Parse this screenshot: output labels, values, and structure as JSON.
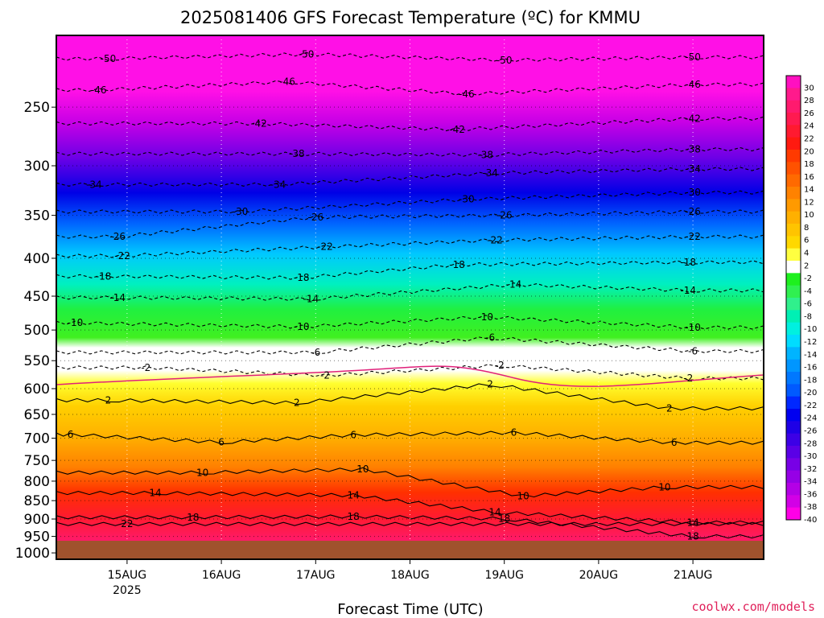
{
  "title": "2025081406 GFS Forecast Temperature (ºC) for KMMU",
  "credit": "coolwx.com/models",
  "chart_data": {
    "type": "heatmap",
    "title": "2025081406 GFS Forecast Temperature (ºC) for KMMU",
    "xlabel": "Forecast Time (UTC)",
    "ylabel": "",
    "x_ticks": [
      "15AUG",
      "16AUG",
      "17AUG",
      "18AUG",
      "19AUG",
      "20AUG",
      "21AUG"
    ],
    "x_tick_year": "2025",
    "x_range_days": [
      -0.75,
      6.75
    ],
    "y_ticks": [
      250,
      300,
      350,
      400,
      450,
      500,
      550,
      600,
      650,
      700,
      750,
      800,
      850,
      900,
      950,
      1000
    ],
    "y_scale": "log-pressure (hPa), inverted",
    "y_range_hpa": [
      200,
      1020
    ],
    "grid": true,
    "ground_level_hpa": 1006,
    "colorbar": {
      "labels": [
        "30",
        "28",
        "26",
        "24",
        "22",
        "20",
        "18",
        "16",
        "14",
        "12",
        "10",
        "8",
        "6",
        "4",
        "2",
        "-2",
        "-4",
        "-6",
        "-8",
        "-10",
        "-12",
        "-14",
        "-16",
        "-18",
        "-20",
        "-22",
        "-24",
        "-26",
        "-28",
        "-30",
        "-32",
        "-34",
        "-36",
        "-38",
        "-40"
      ],
      "colors": [
        "#ff10c0",
        "#ff1a8c",
        "#ff1a6e",
        "#ff1a50",
        "#ff1a30",
        "#ff1a10",
        "#ff3a00",
        "#ff5200",
        "#ff6a00",
        "#ff8200",
        "#ff9a00",
        "#ffb000",
        "#ffc400",
        "#ffd800",
        "#ffff40",
        "#ffffff",
        "#1ef01e",
        "#30f050",
        "#30f08c",
        "#00f0b4",
        "#00f0e0",
        "#00dcff",
        "#00b4ff",
        "#0096ff",
        "#0078ff",
        "#005aff",
        "#0028ff",
        "#0000f0",
        "#1e00e6",
        "#3c00e6",
        "#5a00e6",
        "#7800e6",
        "#9600e6",
        "#b400e6",
        "#d200e6",
        "#ff00e6"
      ]
    },
    "contour_labels": [
      {
        "day": -0.2,
        "p": 215,
        "text": "-50"
      },
      {
        "day": 1.9,
        "p": 212,
        "text": "-50"
      },
      {
        "day": 4.0,
        "p": 216,
        "text": "-50"
      },
      {
        "day": 6.0,
        "p": 214,
        "text": "-50"
      },
      {
        "day": -0.3,
        "p": 237,
        "text": "-46"
      },
      {
        "day": 1.7,
        "p": 231,
        "text": "-46"
      },
      {
        "day": 3.6,
        "p": 240,
        "text": "-46"
      },
      {
        "day": 6.0,
        "p": 233,
        "text": "-46"
      },
      {
        "day": 1.4,
        "p": 263,
        "text": "-42"
      },
      {
        "day": 3.5,
        "p": 268,
        "text": "-42"
      },
      {
        "day": 6.0,
        "p": 259,
        "text": "-42"
      },
      {
        "day": 1.8,
        "p": 289,
        "text": "-38"
      },
      {
        "day": 3.8,
        "p": 290,
        "text": "-38"
      },
      {
        "day": 6.0,
        "p": 285,
        "text": "-38"
      },
      {
        "day": -0.35,
        "p": 318,
        "text": "-34"
      },
      {
        "day": 1.6,
        "p": 318,
        "text": "-34"
      },
      {
        "day": 3.85,
        "p": 307,
        "text": "-34"
      },
      {
        "day": 6.0,
        "p": 303,
        "text": "-34"
      },
      {
        "day": 1.2,
        "p": 346,
        "text": "-30"
      },
      {
        "day": 3.6,
        "p": 333,
        "text": "-30"
      },
      {
        "day": 6.0,
        "p": 326,
        "text": "-30"
      },
      {
        "day": -0.1,
        "p": 374,
        "text": "-26"
      },
      {
        "day": 2.0,
        "p": 352,
        "text": "-26"
      },
      {
        "day": 4.0,
        "p": 350,
        "text": "-26"
      },
      {
        "day": 6.0,
        "p": 346,
        "text": "-26"
      },
      {
        "day": -0.05,
        "p": 397,
        "text": "-22"
      },
      {
        "day": 2.1,
        "p": 386,
        "text": "-22"
      },
      {
        "day": 3.9,
        "p": 378,
        "text": "-22"
      },
      {
        "day": 6.0,
        "p": 374,
        "text": "-22"
      },
      {
        "day": -0.25,
        "p": 423,
        "text": "-18"
      },
      {
        "day": 1.85,
        "p": 425,
        "text": "-18"
      },
      {
        "day": 3.5,
        "p": 408,
        "text": "-18"
      },
      {
        "day": 5.95,
        "p": 405,
        "text": "-18"
      },
      {
        "day": -0.1,
        "p": 452,
        "text": "-14"
      },
      {
        "day": 1.95,
        "p": 454,
        "text": "-14"
      },
      {
        "day": 4.1,
        "p": 434,
        "text": "-14"
      },
      {
        "day": 5.95,
        "p": 442,
        "text": "-14"
      },
      {
        "day": -0.55,
        "p": 489,
        "text": "-10"
      },
      {
        "day": 1.85,
        "p": 495,
        "text": "-10"
      },
      {
        "day": 3.8,
        "p": 480,
        "text": "-10"
      },
      {
        "day": 6.0,
        "p": 496,
        "text": "-10"
      },
      {
        "day": 2.0,
        "p": 536,
        "text": "-6"
      },
      {
        "day": 3.85,
        "p": 512,
        "text": "-6"
      },
      {
        "day": 6.0,
        "p": 534,
        "text": "-6"
      },
      {
        "day": 0.2,
        "p": 562,
        "text": "-2"
      },
      {
        "day": 2.1,
        "p": 576,
        "text": "-2"
      },
      {
        "day": 3.95,
        "p": 558,
        "text": "-2"
      },
      {
        "day": 5.95,
        "p": 581,
        "text": "-2"
      },
      {
        "day": 3.85,
        "p": 592,
        "text": "2"
      },
      {
        "day": -0.2,
        "p": 622,
        "text": "2"
      },
      {
        "day": 1.8,
        "p": 627,
        "text": "2"
      },
      {
        "day": 5.75,
        "p": 638,
        "text": "2"
      },
      {
        "day": -0.6,
        "p": 692,
        "text": "6"
      },
      {
        "day": 1.0,
        "p": 709,
        "text": "6"
      },
      {
        "day": 2.4,
        "p": 693,
        "text": "6"
      },
      {
        "day": 4.1,
        "p": 688,
        "text": "6"
      },
      {
        "day": 5.8,
        "p": 710,
        "text": "6"
      },
      {
        "day": 0.8,
        "p": 779,
        "text": "10"
      },
      {
        "day": 2.5,
        "p": 771,
        "text": "10"
      },
      {
        "day": 4.2,
        "p": 838,
        "text": "10"
      },
      {
        "day": 5.7,
        "p": 815,
        "text": "10"
      },
      {
        "day": 0.3,
        "p": 830,
        "text": "14"
      },
      {
        "day": 2.4,
        "p": 836,
        "text": "14"
      },
      {
        "day": 3.9,
        "p": 881,
        "text": "14"
      },
      {
        "day": 6.0,
        "p": 910,
        "text": "14"
      },
      {
        "day": 0.0,
        "p": 914,
        "text": "22"
      },
      {
        "day": 0.7,
        "p": 895,
        "text": "18"
      },
      {
        "day": 2.4,
        "p": 893,
        "text": "18"
      },
      {
        "day": 4.0,
        "p": 899,
        "text": "18"
      },
      {
        "day": 6.0,
        "p": 950,
        "text": "18"
      }
    ]
  }
}
